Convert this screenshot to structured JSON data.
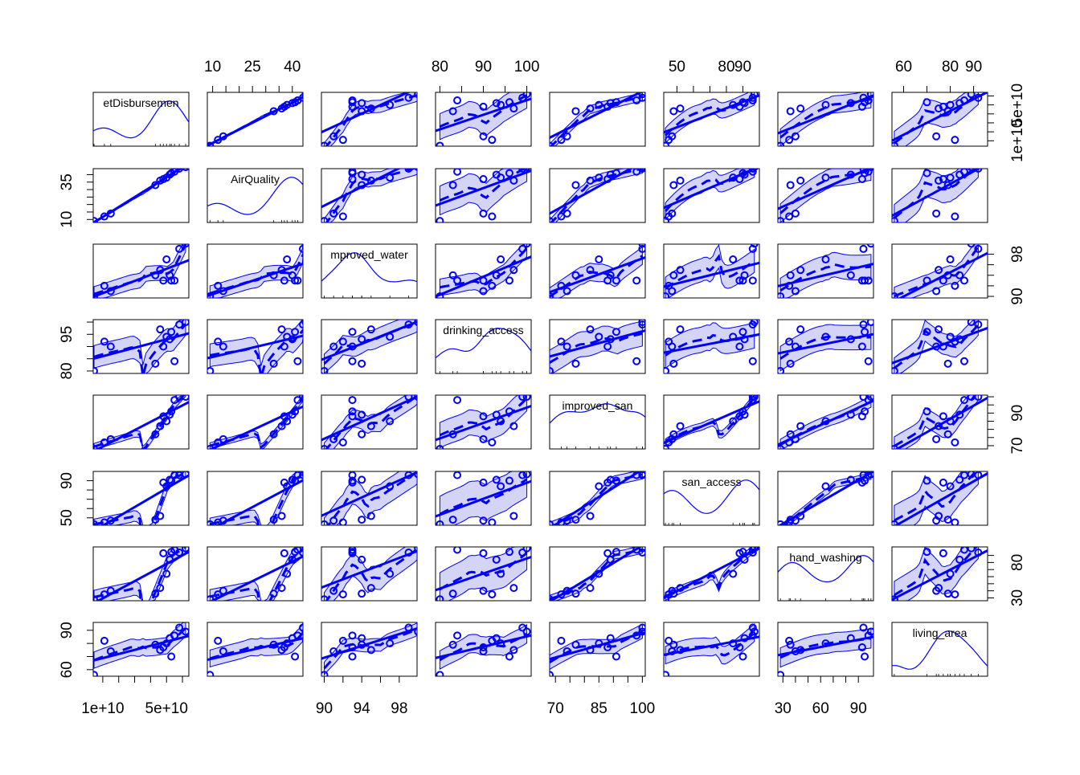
{
  "chart_data": {
    "type": "scatter",
    "subtype": "scatterplot-matrix",
    "title": "",
    "variables": [
      {
        "label": "etDisbursemen",
        "ticks": [
          10000000000,
          20000000000,
          30000000000,
          40000000000,
          50000000000,
          60000000000
        ],
        "labeled_ticks": [
          {
            "value": 10000000000,
            "text": "1e+10"
          },
          {
            "value": 50000000000,
            "text": "5e+10"
          }
        ],
        "range": [
          4000000000,
          64000000000
        ]
      },
      {
        "label": "AirQuality",
        "ticks": [
          10,
          15,
          20,
          25,
          30,
          35,
          40
        ],
        "labeled_ticks": [
          {
            "value": 10,
            "text": "10"
          },
          {
            "value": 25,
            "text": "25"
          },
          {
            "value": 40,
            "text": "40"
          },
          {
            "value": 35,
            "text": "35"
          }
        ],
        "range": [
          8,
          44
        ]
      },
      {
        "label": "mproved_water",
        "ticks": [
          90,
          92,
          94,
          96,
          98
        ],
        "labeled_ticks": [
          {
            "value": 90,
            "text": "90"
          },
          {
            "value": 94,
            "text": "94"
          },
          {
            "value": 98,
            "text": "98"
          }
        ],
        "range": [
          89.7,
          99.9
        ]
      },
      {
        "label": "drinking_access",
        "ticks": [
          80,
          85,
          90,
          95,
          100
        ],
        "labeled_ticks": [
          {
            "value": 80,
            "text": "80"
          },
          {
            "value": 90,
            "text": "90"
          },
          {
            "value": 100,
            "text": "100"
          },
          {
            "value": 95,
            "text": "95"
          }
        ],
        "range": [
          79,
          101
        ]
      },
      {
        "label": "improved_san",
        "ticks": [
          70,
          75,
          80,
          85,
          90,
          95,
          100
        ],
        "labeled_ticks": [
          {
            "value": 70,
            "text": "70"
          },
          {
            "value": 85,
            "text": "85"
          },
          {
            "value": 100,
            "text": "100"
          },
          {
            "value": 90,
            "text": "90"
          }
        ],
        "range": [
          68,
          101
        ]
      },
      {
        "label": "san_access",
        "ticks": [
          50,
          60,
          70,
          80,
          90
        ],
        "labeled_ticks": [
          {
            "value": 50,
            "text": "50"
          },
          {
            "value": 80,
            "text": "80"
          },
          {
            "value": 90,
            "text": "90"
          }
        ],
        "range": [
          42,
          100
        ]
      },
      {
        "label": "hand_washing",
        "ticks": [
          30,
          40,
          50,
          60,
          70,
          80,
          90
        ],
        "labeled_ticks": [
          {
            "value": 30,
            "text": "30"
          },
          {
            "value": 60,
            "text": "60"
          },
          {
            "value": 90,
            "text": "90"
          },
          {
            "value": 80,
            "text": "80"
          }
        ],
        "range": [
          26,
          102
        ]
      },
      {
        "label": "living_area",
        "ticks": [
          60,
          70,
          80,
          90
        ],
        "labeled_ticks": [
          {
            "value": 60,
            "text": "60"
          },
          {
            "value": 80,
            "text": "80"
          },
          {
            "value": 90,
            "text": "90"
          }
        ],
        "range": [
          55,
          96
        ]
      }
    ],
    "observations": [
      [
        4500000000,
        9,
        90,
        80,
        68,
        43,
        28,
        56
      ],
      [
        11000000000,
        12,
        92,
        92,
        72,
        45,
        35,
        82
      ],
      [
        15000000000,
        14,
        91,
        90,
        74,
        47,
        40,
        74
      ],
      [
        43000000000,
        33,
        94,
        83,
        77,
        48,
        36,
        79
      ],
      [
        46000000000,
        36,
        95,
        97,
        82,
        52,
        44,
        75
      ],
      [
        48000000000,
        37,
        93,
        90,
        88,
        88,
        93,
        77
      ],
      [
        50000000000,
        38,
        97,
        94,
        85,
        84,
        64,
        80
      ],
      [
        52000000000,
        40,
        94,
        93,
        89,
        91,
        84,
        84
      ],
      [
        53000000000,
        41,
        93,
        96,
        91,
        90,
        95,
        70
      ],
      [
        55000000000,
        42,
        93,
        84,
        98,
        96,
        98,
        86
      ],
      [
        58000000000,
        44,
        99,
        99,
        100,
        96,
        94,
        92
      ],
      [
        62000000000,
        45,
        100,
        100,
        100,
        97,
        100,
        89
      ]
    ],
    "color": "#0000ff",
    "shade_color": "#ccccf6",
    "grid": false,
    "legend": "none",
    "panel_elements": [
      "points",
      "linear-fit",
      "smoother-dashed",
      "confidence-band"
    ],
    "diagonal": "density"
  }
}
